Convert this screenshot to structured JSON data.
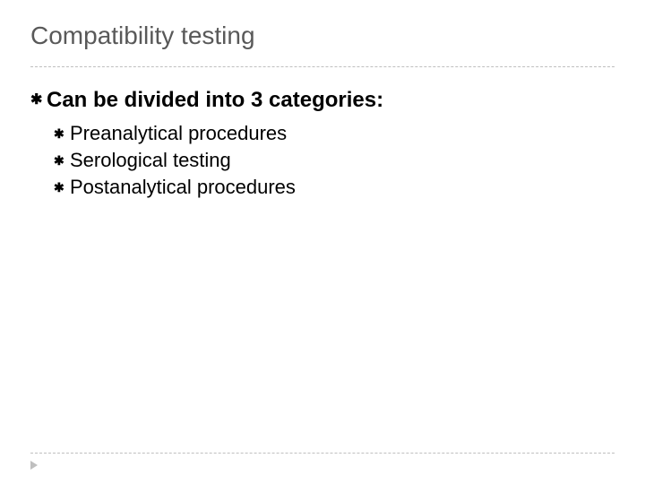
{
  "slide": {
    "title": "Compatibility testing",
    "title_color": "#595959",
    "title_fontsize": 28,
    "divider_color": "#bfbfbf",
    "bullet_marker": "✱",
    "main_bullet": {
      "text": "Can be divided into 3 categories:",
      "fontsize": 24,
      "bold": true
    },
    "sub_bullets": [
      {
        "text": "Preanalytical procedures"
      },
      {
        "text": "Serological testing"
      },
      {
        "text": "Postanalytical procedures"
      }
    ],
    "sub_bullet_fontsize": 22,
    "background_color": "#ffffff",
    "footer_arrow_color": "#bfbfbf"
  }
}
